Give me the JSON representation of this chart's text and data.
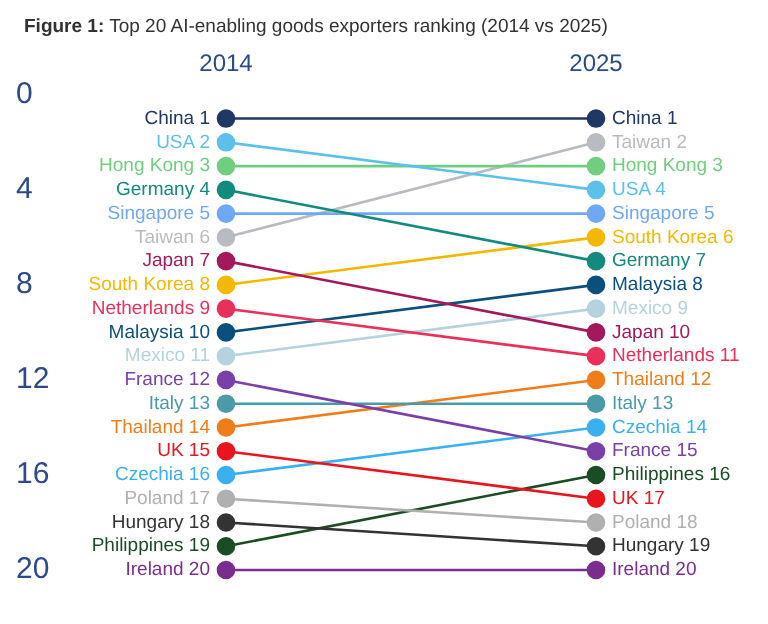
{
  "chart_data": {
    "type": "line",
    "title": "Figure 1: Top 20 AI-enabling goods exporters ranking (2014 vs 2025)",
    "categories": [
      "2014",
      "2025"
    ],
    "ylim": [
      20,
      0
    ],
    "yticks": [
      0,
      4,
      8,
      12,
      16,
      20
    ],
    "grid": false,
    "legend": false,
    "marker": "circle",
    "line_style": "solid",
    "series": [
      {
        "color": "#1f3864",
        "values": [
          1,
          1
        ],
        "value_labels": [
          "China 1",
          "China 1"
        ]
      },
      {
        "color": "#5bc0eb",
        "values": [
          2,
          4
        ],
        "value_labels": [
          "USA 2",
          "USA 4"
        ]
      },
      {
        "color": "#6fcf7f",
        "values": [
          3,
          3
        ],
        "value_labels": [
          "Hong Kong 3",
          "Hong Kong 3"
        ]
      },
      {
        "color": "#138a7e",
        "values": [
          4,
          7
        ],
        "value_labels": [
          "Germany 4",
          "Germany 7"
        ]
      },
      {
        "color": "#6fa8f5",
        "values": [
          5,
          5
        ],
        "value_labels": [
          "Singapore 5",
          "Singapore 5"
        ]
      },
      {
        "color": "#b8bcc0",
        "values": [
          6,
          2
        ],
        "value_labels": [
          "Taiwan 6",
          "Taiwan 2"
        ]
      },
      {
        "color": "#a3195b",
        "values": [
          7,
          10
        ],
        "value_labels": [
          "Japan 7",
          "Japan 10"
        ]
      },
      {
        "color": "#f5b800",
        "values": [
          8,
          6
        ],
        "value_labels": [
          "South Korea 8",
          "South Korea 6"
        ]
      },
      {
        "color": "#e8305a",
        "values": [
          9,
          11
        ],
        "value_labels": [
          "Netherlands 9",
          "Netherlands 11"
        ]
      },
      {
        "color": "#0b4f7c",
        "values": [
          10,
          8
        ],
        "value_labels": [
          "Malaysia 10",
          "Malaysia 8"
        ]
      },
      {
        "color": "#b5d3df",
        "values": [
          11,
          9
        ],
        "value_labels": [
          "Mexico 11",
          "Mexico 9"
        ]
      },
      {
        "color": "#7a3fa8",
        "values": [
          12,
          15
        ],
        "value_labels": [
          "France 12",
          "France 15"
        ]
      },
      {
        "color": "#4a9aa8",
        "values": [
          13,
          13
        ],
        "value_labels": [
          "Italy 13",
          "Italy 13"
        ]
      },
      {
        "color": "#f07d1a",
        "values": [
          14,
          12
        ],
        "value_labels": [
          "Thailand 14",
          "Thailand 12"
        ]
      },
      {
        "color": "#e8141e",
        "values": [
          15,
          17
        ],
        "value_labels": [
          "UK 15",
          "UK 17"
        ]
      },
      {
        "color": "#3ab0f0",
        "values": [
          16,
          14
        ],
        "value_labels": [
          "Czechia 16",
          "Czechia 14"
        ]
      },
      {
        "color": "#b0b0b0",
        "values": [
          17,
          18
        ],
        "value_labels": [
          "Poland 17",
          "Poland 18"
        ]
      },
      {
        "color": "#333333",
        "values": [
          18,
          19
        ],
        "value_labels": [
          "Hungary 18",
          "Hungary 19"
        ]
      },
      {
        "color": "#1a4d24",
        "values": [
          19,
          16
        ],
        "value_labels": [
          "Philippines 19",
          "Philippines 16"
        ]
      },
      {
        "color": "#7b2d8e",
        "values": [
          20,
          20
        ],
        "value_labels": [
          "Ireland 20",
          "Ireland 20"
        ]
      }
    ]
  }
}
